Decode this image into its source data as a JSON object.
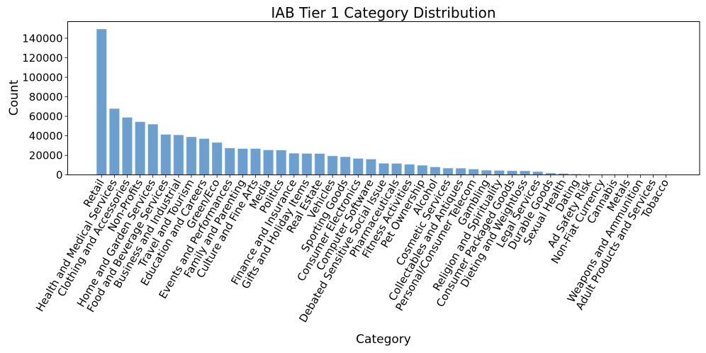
{
  "chart_data": {
    "type": "bar",
    "title": "IAB Tier 1 Category Distribution",
    "xlabel": "Category",
    "ylabel": "Count",
    "ylim": [
      0,
      157000
    ],
    "yticks": [
      0,
      20000,
      40000,
      60000,
      80000,
      100000,
      120000,
      140000
    ],
    "grid": false,
    "legend": null,
    "bar_color": "#6a9fcf",
    "x_tick_rotation": 60,
    "categories": [
      "Retail",
      "Health and Medical Services",
      "Clothing and Accessories",
      "Non-Profits",
      "Home and Garden Services",
      "Food and Beverage Services",
      "Business and Industrial",
      "Travel and Tourism",
      "Education and Careers",
      "Green/Eco",
      "Events and Performances",
      "Family and Parenting",
      "Culture and Fine Arts",
      "Media",
      "Politics",
      "Finance and Insurance",
      "Gifts and Holiday Items",
      "Real Estate",
      "Vehicles",
      "Sporting Goods",
      "Consumer Electronics",
      "Computer Software",
      "Debated Sensitive Social Issue",
      "Pharmaceuticals",
      "Fitness Activities",
      "Pet Ownership",
      "Alcohol",
      "Cosmetic Services",
      "Collectables and Antiques",
      "Personal/Consumer Telecom",
      "Gambling",
      "Religion and Spirituality",
      "Consumer Packaged Goods",
      "Dieting and Weightloss",
      "Legal Services",
      "Durable Goods",
      "Sexual Health",
      "Dating",
      "Ad Safety Risk",
      "Non-Fiat Currency",
      "Cannabis",
      "Metals",
      "Weapons and Ammunition",
      "Adult Products and Services",
      "Tobacco"
    ],
    "values": [
      149500,
      68000,
      59000,
      54500,
      52000,
      41500,
      41000,
      39000,
      37200,
      33300,
      27600,
      27000,
      27000,
      25600,
      25500,
      22200,
      22000,
      21900,
      19500,
      18600,
      16900,
      16200,
      11900,
      11800,
      10900,
      9900,
      8200,
      7000,
      6900,
      6000,
      4800,
      4600,
      4300,
      4200,
      3400,
      1950,
      1450,
      950,
      300,
      150,
      80,
      50,
      30,
      20,
      10
    ]
  }
}
